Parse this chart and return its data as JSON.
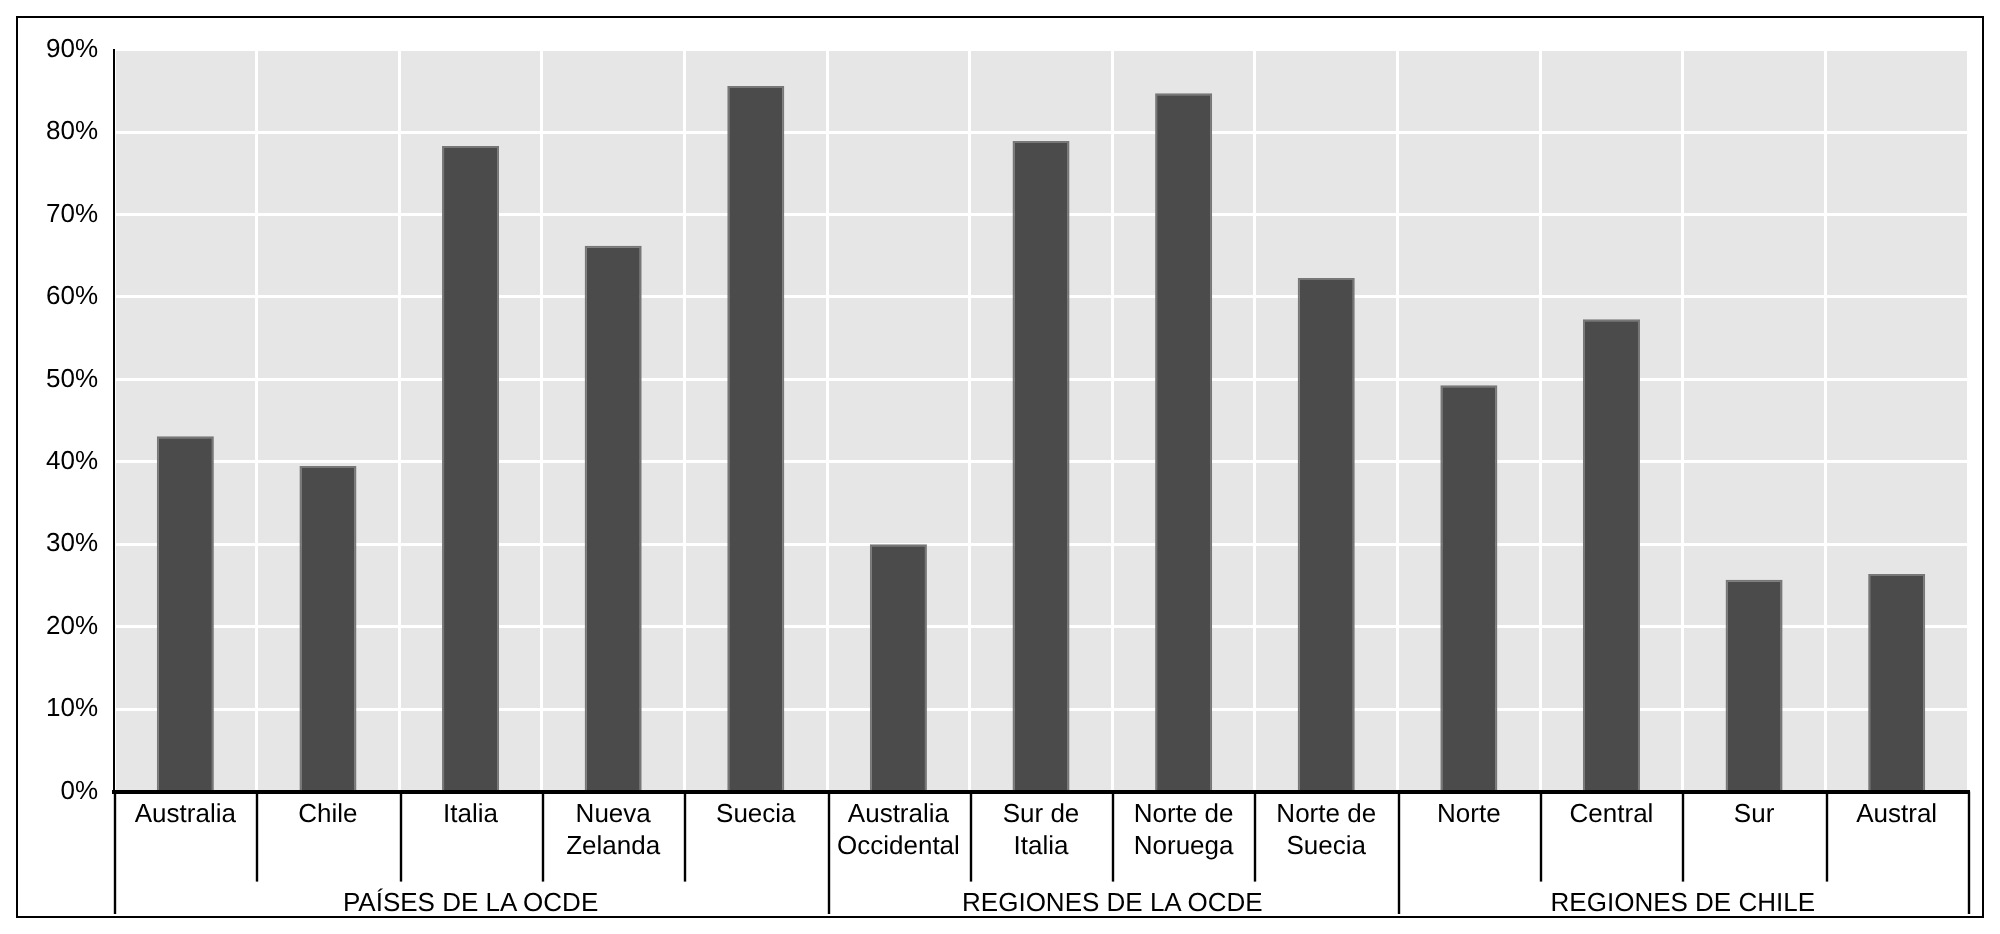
{
  "chart_data": {
    "type": "bar",
    "categories": [
      "Australia",
      "Chile",
      "Italia",
      "Nueva Zelanda",
      "Suecia",
      "Australia Occidental",
      "Sur de Italia",
      "Norte de Noruega",
      "Norte de Suecia",
      "Norte",
      "Central",
      "Sur",
      "Austral"
    ],
    "values": [
      43.1,
      39.5,
      78.3,
      66.2,
      85.6,
      30.0,
      78.9,
      84.7,
      62.3,
      49.3,
      57.3,
      25.7,
      26.4
    ],
    "color": "#4b4b4b",
    "ylim": [
      0,
      90
    ],
    "yticks": [
      {
        "value": 0,
        "label": "0%"
      },
      {
        "value": 10,
        "label": "10%"
      },
      {
        "value": 20,
        "label": "20%"
      },
      {
        "value": 30,
        "label": "30%"
      },
      {
        "value": 40,
        "label": "40%"
      },
      {
        "value": 50,
        "label": "50%"
      },
      {
        "value": 60,
        "label": "60%"
      },
      {
        "value": 70,
        "label": "70%"
      },
      {
        "value": 80,
        "label": "80%"
      },
      {
        "value": 90,
        "label": "90%"
      }
    ],
    "grid": true,
    "annotations": [
      "PAÍSES DE LA OCDE",
      "REGIONES DE LA OCDE",
      "REGIONES DE CHILE"
    ]
  }
}
